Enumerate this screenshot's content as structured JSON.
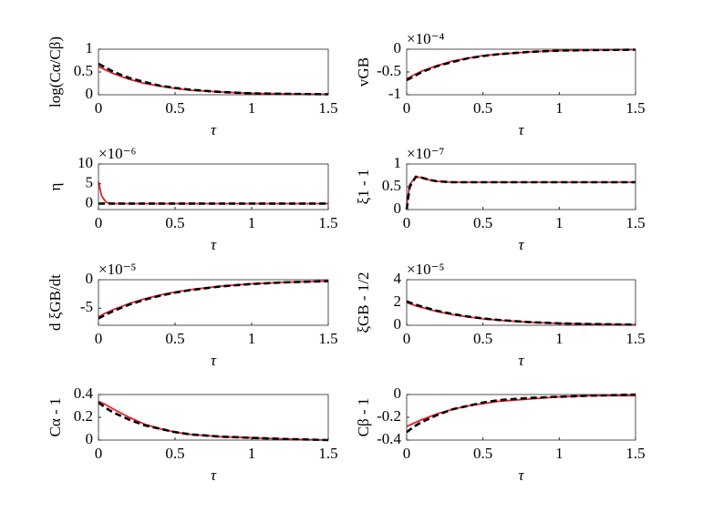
{
  "chart_data": [
    {
      "type": "line",
      "ylabel": "log(Cα/Cβ)",
      "xlabel": "τ",
      "x": [
        0,
        0.05,
        0.1,
        0.2,
        0.3,
        0.4,
        0.5,
        0.6,
        0.8,
        1,
        1.2,
        1.5
      ],
      "xlim": [
        0,
        1.5
      ],
      "xticks": [
        0,
        0.5,
        1,
        1.5
      ],
      "ylim": [
        0,
        1
      ],
      "yticks": [
        0,
        0.5,
        1
      ],
      "series": [
        {
          "color": "#e8202a",
          "style": "solid",
          "values": [
            0.62,
            0.54,
            0.46,
            0.34,
            0.25,
            0.19,
            0.14,
            0.1,
            0.06,
            0.03,
            0.02,
            0.01
          ]
        },
        {
          "color": "#000000",
          "style": "dashed",
          "values": [
            0.68,
            0.59,
            0.5,
            0.37,
            0.28,
            0.2,
            0.15,
            0.11,
            0.06,
            0.03,
            0.02,
            0.01
          ]
        }
      ]
    },
    {
      "type": "line",
      "ylabel": "vGB",
      "xlabel": "τ",
      "multiplier": "×10⁻⁴",
      "x": [
        0,
        0.05,
        0.1,
        0.2,
        0.3,
        0.4,
        0.5,
        0.6,
        0.8,
        1,
        1.2,
        1.5
      ],
      "xlim": [
        0,
        1.5
      ],
      "xticks": [
        0,
        0.5,
        1,
        1.5
      ],
      "ylim": [
        -1,
        0
      ],
      "yticks": [
        -1,
        -0.5,
        0
      ],
      "series": [
        {
          "color": "#e8202a",
          "style": "solid",
          "values": [
            -0.65,
            -0.56,
            -0.48,
            -0.36,
            -0.26,
            -0.2,
            -0.14,
            -0.11,
            -0.06,
            -0.03,
            -0.02,
            -0.01
          ]
        },
        {
          "color": "#000000",
          "style": "dashed",
          "values": [
            -0.68,
            -0.59,
            -0.5,
            -0.37,
            -0.28,
            -0.2,
            -0.15,
            -0.11,
            -0.06,
            -0.03,
            -0.02,
            -0.01
          ]
        }
      ]
    },
    {
      "type": "line",
      "ylabel": "η",
      "xlabel": "τ",
      "multiplier": "×10⁻⁶",
      "x": [
        0,
        0.02,
        0.05,
        0.1,
        0.2,
        0.3,
        0.4,
        0.5,
        0.6,
        0.8,
        1,
        1.2,
        1.5
      ],
      "xlim": [
        0,
        1.5
      ],
      "xticks": [
        0,
        0.5,
        1,
        1.5
      ],
      "ylim": [
        -1.5,
        10
      ],
      "yticks": [
        0,
        5,
        10
      ],
      "series": [
        {
          "color": "#e8202a",
          "style": "solid",
          "values": [
            5.5,
            2,
            0.3,
            0,
            0,
            0,
            0,
            0,
            0,
            0,
            0,
            0,
            0
          ]
        },
        {
          "color": "#000000",
          "style": "dashed",
          "values": [
            0,
            0,
            0,
            0,
            0,
            0,
            0,
            0,
            0,
            0,
            0,
            0,
            0
          ]
        }
      ]
    },
    {
      "type": "line",
      "ylabel": "ξ1 - 1",
      "xlabel": "τ",
      "multiplier": "×10⁻⁷",
      "x": [
        0,
        0.02,
        0.06,
        0.1,
        0.15,
        0.2,
        0.3,
        0.5,
        0.8,
        1,
        1.2,
        1.5
      ],
      "xlim": [
        0,
        1.5
      ],
      "xticks": [
        0,
        0.5,
        1,
        1.5
      ],
      "ylim": [
        0,
        1
      ],
      "yticks": [
        0,
        0.5,
        1
      ],
      "series": [
        {
          "color": "#e8202a",
          "style": "solid",
          "values": [
            0.1,
            0.55,
            0.72,
            0.7,
            0.65,
            0.62,
            0.6,
            0.6,
            0.6,
            0.6,
            0.6,
            0.6
          ]
        },
        {
          "color": "#000000",
          "style": "dashed",
          "values": [
            0,
            0.5,
            0.72,
            0.7,
            0.65,
            0.62,
            0.6,
            0.6,
            0.6,
            0.6,
            0.6,
            0.6
          ]
        }
      ]
    },
    {
      "type": "line",
      "ylabel": "d ξGB/dt",
      "xlabel": "τ",
      "multiplier": "×10⁻⁵",
      "x": [
        0,
        0.05,
        0.1,
        0.2,
        0.3,
        0.4,
        0.5,
        0.6,
        0.8,
        1,
        1.2,
        1.5
      ],
      "xlim": [
        0,
        1.5
      ],
      "xticks": [
        0,
        0.5,
        1,
        1.5
      ],
      "ylim": [
        -8,
        0
      ],
      "yticks": [
        -5,
        0
      ],
      "series": [
        {
          "color": "#e8202a",
          "style": "solid",
          "values": [
            -6.5,
            -5.82,
            -5.22,
            -4.19,
            -3.36,
            -2.7,
            -2.16,
            -1.74,
            -1.12,
            -0.72,
            -0.46,
            -0.24
          ]
        },
        {
          "color": "#000000",
          "style": "dashed",
          "values": [
            -6.8,
            -6.09,
            -5.46,
            -4.38,
            -3.52,
            -2.82,
            -2.26,
            -1.82,
            -1.17,
            -0.75,
            -0.48,
            -0.25
          ]
        }
      ]
    },
    {
      "type": "line",
      "ylabel": "ξGB - 1/2",
      "xlabel": "τ",
      "multiplier": "×10⁻⁵",
      "x": [
        0,
        0.05,
        0.1,
        0.2,
        0.3,
        0.4,
        0.5,
        0.6,
        0.8,
        1,
        1.2,
        1.5
      ],
      "xlim": [
        0,
        1.5
      ],
      "xticks": [
        0,
        0.5,
        1,
        1.5
      ],
      "ylim": [
        0,
        4
      ],
      "yticks": [
        0,
        2,
        4
      ],
      "series": [
        {
          "color": "#e8202a",
          "style": "solid",
          "values": [
            2,
            1.76,
            1.56,
            1.21,
            0.94,
            0.74,
            0.57,
            0.45,
            0.27,
            0.16,
            0.1,
            0.05
          ]
        },
        {
          "color": "#000000",
          "style": "dashed",
          "values": [
            2.1,
            1.85,
            1.64,
            1.27,
            0.99,
            0.77,
            0.6,
            0.47,
            0.28,
            0.17,
            0.11,
            0.05
          ]
        }
      ]
    },
    {
      "type": "line",
      "ylabel": "Cα - 1",
      "xlabel": "τ",
      "x": [
        0,
        0.05,
        0.1,
        0.2,
        0.3,
        0.4,
        0.5,
        0.6,
        0.8,
        1,
        1.2,
        1.5
      ],
      "xlim": [
        0,
        1.5
      ],
      "xticks": [
        0,
        0.5,
        1,
        1.5
      ],
      "ylim": [
        0,
        0.4
      ],
      "yticks": [
        0,
        0.2,
        0.4
      ],
      "series": [
        {
          "color": "#e8202a",
          "style": "solid",
          "values": [
            0.34,
            0.31,
            0.27,
            0.2,
            0.14,
            0.1,
            0.07,
            0.05,
            0.03,
            0.02,
            0.01,
            0
          ]
        },
        {
          "color": "#000000",
          "style": "dashed",
          "values": [
            0.33,
            0.28,
            0.24,
            0.18,
            0.13,
            0.1,
            0.07,
            0.05,
            0.03,
            0.02,
            0.01,
            0
          ]
        }
      ]
    },
    {
      "type": "line",
      "ylabel": "Cβ - 1",
      "xlabel": "τ",
      "x": [
        0,
        0.05,
        0.1,
        0.2,
        0.3,
        0.4,
        0.5,
        0.6,
        0.8,
        1,
        1.2,
        1.5
      ],
      "xlim": [
        0,
        1.5
      ],
      "xticks": [
        0,
        0.5,
        1,
        1.5
      ],
      "ylim": [
        -0.4,
        0
      ],
      "yticks": [
        -0.4,
        -0.2,
        0
      ],
      "series": [
        {
          "color": "#e8202a",
          "style": "solid",
          "values": [
            -0.28,
            -0.25,
            -0.22,
            -0.17,
            -0.13,
            -0.1,
            -0.08,
            -0.06,
            -0.04,
            -0.02,
            -0.01,
            -0.01
          ]
        },
        {
          "color": "#000000",
          "style": "dashed",
          "values": [
            -0.33,
            -0.28,
            -0.24,
            -0.18,
            -0.13,
            -0.1,
            -0.07,
            -0.05,
            -0.03,
            -0.02,
            -0.01,
            0
          ]
        }
      ]
    }
  ]
}
